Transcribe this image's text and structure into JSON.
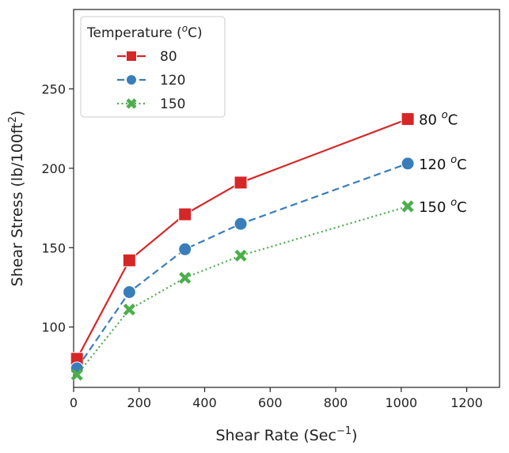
{
  "chart_data": {
    "type": "line",
    "title": "",
    "xlabel_base": "Shear Rate (Sec",
    "xlabel_sup": "−1",
    "xlabel_end": ")",
    "ylabel_base": "Shear Stress (lb/100ft",
    "ylabel_sup": "2",
    "ylabel_end": ")",
    "xlim": [
      0,
      1300
    ],
    "ylim": [
      62,
      300
    ],
    "xticks": [
      0,
      200,
      400,
      600,
      800,
      1000,
      1200
    ],
    "yticks": [
      100,
      150,
      200,
      250
    ],
    "grid": false,
    "legend": {
      "title_base": "Temperature (",
      "title_sup": "o",
      "title_end": "C)",
      "position": "top-left"
    },
    "x": [
      10.2,
      170,
      340,
      510,
      1020
    ],
    "series": [
      {
        "name": "80",
        "values": [
          80,
          142,
          171,
          191,
          231
        ],
        "color": "#d62728",
        "dash": "solid",
        "marker": "square",
        "label_base": "80 ",
        "label_sup": "o",
        "label_end": "C"
      },
      {
        "name": "120",
        "values": [
          74,
          122,
          149,
          165,
          203
        ],
        "color": "#3a7dbb",
        "dash": "dashed",
        "marker": "circle",
        "label_base": "120 ",
        "label_sup": "o",
        "label_end": "C"
      },
      {
        "name": "150",
        "values": [
          70,
          111,
          131,
          145,
          176
        ],
        "color": "#4cae4c",
        "dash": "dotted",
        "marker": "x",
        "label_base": "150 ",
        "label_sup": "o",
        "label_end": "C"
      }
    ]
  }
}
